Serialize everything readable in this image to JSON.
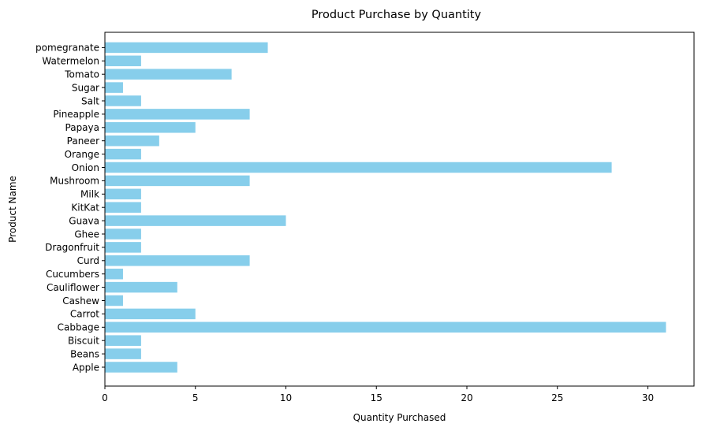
{
  "chart_data": {
    "type": "bar",
    "orientation": "horizontal",
    "title": "Product Purchase by Quantity",
    "xlabel": "Quantity Purchased",
    "ylabel": "Product Name",
    "categories": [
      "Apple",
      "Beans",
      "Biscuit",
      "Cabbage",
      "Carrot",
      "Cashew",
      "Cauliflower",
      "Cucumbers",
      "Curd",
      "Dragonfruit",
      "Ghee",
      "Guava",
      "KitKat",
      "Milk",
      "Mushroom",
      "Onion",
      "Orange",
      "Paneer",
      "Papaya",
      "Pineapple",
      "Salt",
      "Sugar",
      "Tomato",
      "Watermelon",
      "pomegranate"
    ],
    "values": [
      4,
      2,
      2,
      31,
      5,
      1,
      4,
      1,
      8,
      2,
      2,
      10,
      2,
      2,
      8,
      28,
      2,
      3,
      5,
      8,
      2,
      1,
      7,
      2,
      9
    ],
    "xlim": [
      0,
      32.55
    ],
    "xticks": [
      0,
      5,
      10,
      15,
      20,
      25,
      30
    ],
    "grid": false,
    "bar_color": "#87CEEB"
  }
}
